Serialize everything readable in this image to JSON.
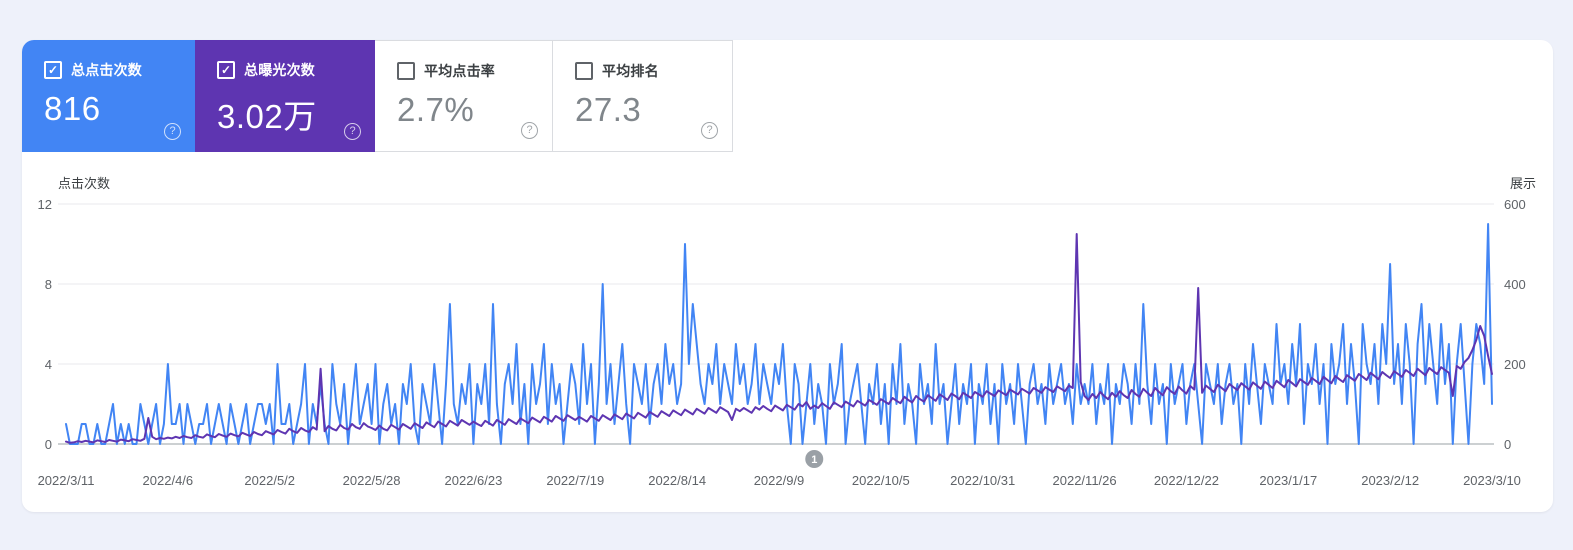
{
  "page": {
    "background": "#eef1fa",
    "panel_background": "#ffffff"
  },
  "help_glyph": "?",
  "check_glyph": "✓",
  "metric_cards": [
    {
      "id": "total-clicks",
      "label": "总点击次数",
      "value": "816",
      "checked": true,
      "background": "#4285f4",
      "label_color": "#ffffff",
      "value_color": "#ffffff",
      "checkbox_color": "#ffffff"
    },
    {
      "id": "total-impressions",
      "label": "总曝光次数",
      "value": "3.02万",
      "checked": true,
      "background": "#5e35b1",
      "label_color": "#ffffff",
      "value_color": "#ffffff",
      "checkbox_color": "#ffffff"
    },
    {
      "id": "average-ctr",
      "label": "平均点击率",
      "value": "2.7%",
      "checked": false,
      "background": "#ffffff",
      "label_color": "#3c4043",
      "value_color": "#80868b",
      "checkbox_color": "#5f6368"
    },
    {
      "id": "average-position",
      "label": "平均排名",
      "value": "27.3",
      "checked": false,
      "background": "#ffffff",
      "label_color": "#3c4043",
      "value_color": "#80868b",
      "checkbox_color": "#5f6368"
    }
  ],
  "chart_data": {
    "type": "line",
    "title": "",
    "grid": true,
    "legend_position": "none",
    "left_axis": {
      "title": "点击次数",
      "ticks": [
        0,
        4,
        8,
        12
      ],
      "range": [
        0,
        12
      ]
    },
    "right_axis": {
      "title": "展示",
      "ticks": [
        0,
        200,
        400,
        600
      ],
      "range": [
        0,
        600
      ]
    },
    "x_tick_labels": [
      "2022/3/11",
      "2022/4/6",
      "2022/5/2",
      "2022/5/28",
      "2022/6/23",
      "2022/7/19",
      "2022/8/14",
      "2022/9/9",
      "2022/10/5",
      "2022/10/31",
      "2022/11/26",
      "2022/12/22",
      "2023/1/17",
      "2023/2/12",
      "2023/3/10"
    ],
    "x_tick_interval_days": 26,
    "days_total": 365,
    "marker": {
      "label": "1",
      "day_index": 191,
      "color": "#9aa0a6",
      "text_color": "#ffffff"
    },
    "grid_color": "#e8eaed",
    "zero_line_color": "#9aa0a6",
    "series": [
      {
        "name": "点击次数",
        "axis": "left",
        "color": "#4285f4",
        "values": [
          1,
          0,
          0,
          0,
          1,
          1,
          0,
          0,
          1,
          0,
          0,
          1,
          2,
          0,
          1,
          0,
          1,
          0,
          0,
          2,
          1,
          0,
          1,
          2,
          0,
          1,
          4,
          1,
          1,
          2,
          0,
          2,
          1,
          0,
          1,
          1,
          2,
          0,
          1,
          2,
          1,
          0,
          2,
          1,
          0,
          1,
          2,
          0,
          1,
          2,
          2,
          1,
          2,
          0,
          4,
          1,
          1,
          2,
          0,
          1,
          2,
          4,
          0,
          2,
          1,
          3,
          1,
          0,
          4,
          2,
          1,
          3,
          0,
          2,
          4,
          1,
          2,
          3,
          1,
          4,
          0,
          2,
          3,
          1,
          2,
          0,
          3,
          2,
          4,
          1,
          0,
          3,
          2,
          1,
          4,
          2,
          0,
          3,
          7,
          2,
          1,
          3,
          2,
          4,
          0,
          3,
          2,
          4,
          1,
          7,
          2,
          0,
          3,
          4,
          2,
          5,
          1,
          3,
          0,
          4,
          2,
          3,
          5,
          1,
          4,
          2,
          3,
          0,
          2,
          4,
          3,
          1,
          5,
          2,
          4,
          0,
          3,
          8,
          2,
          4,
          1,
          3,
          5,
          2,
          0,
          4,
          3,
          2,
          4,
          1,
          3,
          4,
          2,
          5,
          3,
          4,
          2,
          3,
          10,
          4,
          7,
          5,
          3,
          2,
          4,
          3,
          5,
          2,
          4,
          3,
          2,
          5,
          3,
          4,
          2,
          3,
          5,
          2,
          4,
          3,
          2,
          4,
          3,
          5,
          2,
          0,
          4,
          3,
          0,
          2,
          4,
          1,
          3,
          2,
          0,
          4,
          2,
          3,
          5,
          0,
          2,
          3,
          4,
          2,
          0,
          3,
          2,
          4,
          1,
          3,
          0,
          4,
          2,
          5,
          1,
          3,
          2,
          0,
          4,
          2,
          3,
          1,
          5,
          2,
          3,
          0,
          2,
          4,
          1,
          3,
          2,
          4,
          0,
          3,
          2,
          4,
          1,
          3,
          0,
          4,
          2,
          3,
          1,
          4,
          2,
          0,
          3,
          4,
          2,
          3,
          1,
          4,
          2,
          3,
          4,
          2,
          3,
          1,
          4,
          2,
          3,
          2,
          4,
          1,
          3,
          2,
          4,
          0,
          3,
          2,
          4,
          3,
          1,
          4,
          2,
          7,
          3,
          1,
          4,
          2,
          3,
          0,
          4,
          2,
          3,
          4,
          1,
          3,
          4,
          2,
          0,
          4,
          3,
          2,
          4,
          1,
          3,
          4,
          2,
          3,
          0,
          4,
          2,
          5,
          3,
          1,
          4,
          3,
          2,
          6,
          3,
          4,
          2,
          5,
          3,
          6,
          1,
          4,
          3,
          5,
          2,
          4,
          0,
          5,
          3,
          4,
          6,
          2,
          5,
          3,
          0,
          6,
          4,
          3,
          5,
          2,
          6,
          4,
          9,
          3,
          5,
          2,
          6,
          4,
          0,
          5,
          7,
          3,
          6,
          4,
          2,
          6,
          3,
          5,
          0,
          4,
          6,
          3,
          0,
          4,
          6,
          5,
          3,
          11,
          2
        ]
      },
      {
        "name": "展示",
        "axis": "right",
        "color": "#5e35b1",
        "values": [
          6,
          3,
          4,
          7,
          5,
          8,
          6,
          4,
          9,
          7,
          5,
          10,
          8,
          6,
          11,
          9,
          7,
          12,
          10,
          8,
          13,
          65,
          18,
          12,
          15,
          13,
          16,
          14,
          18,
          15,
          20,
          17,
          15,
          22,
          18,
          16,
          24,
          20,
          17,
          25,
          21,
          18,
          26,
          22,
          19,
          28,
          24,
          20,
          30,
          25,
          22,
          32,
          28,
          24,
          35,
          30,
          26,
          38,
          32,
          28,
          40,
          34,
          30,
          42,
          36,
          188,
          32,
          45,
          38,
          34,
          48,
          40,
          36,
          50,
          42,
          38,
          52,
          44,
          40,
          35,
          46,
          38,
          34,
          48,
          42,
          36,
          50,
          44,
          38,
          52,
          46,
          40,
          54,
          48,
          42,
          56,
          50,
          44,
          58,
          52,
          46,
          60,
          54,
          48,
          56,
          50,
          45,
          58,
          52,
          46,
          60,
          54,
          48,
          62,
          56,
          50,
          64,
          58,
          52,
          66,
          60,
          54,
          68,
          62,
          56,
          70,
          64,
          58,
          72,
          66,
          60,
          68,
          62,
          56,
          70,
          64,
          58,
          72,
          66,
          60,
          74,
          68,
          62,
          76,
          70,
          64,
          78,
          72,
          66,
          80,
          74,
          68,
          82,
          76,
          70,
          84,
          78,
          72,
          86,
          80,
          74,
          88,
          82,
          76,
          90,
          84,
          78,
          92,
          86,
          80,
          60,
          88,
          82,
          90,
          84,
          78,
          92,
          86,
          95,
          88,
          82,
          96,
          90,
          84,
          98,
          92,
          86,
          100,
          94,
          105,
          88,
          96,
          90,
          102,
          95,
          88,
          104,
          98,
          92,
          106,
          100,
          94,
          108,
          102,
          96,
          110,
          104,
          98,
          112,
          106,
          100,
          115,
          108,
          102,
          118,
          110,
          104,
          120,
          112,
          106,
          122,
          115,
          108,
          124,
          118,
          110,
          126,
          120,
          112,
          128,
          122,
          115,
          130,
          124,
          118,
          132,
          126,
          120,
          134,
          128,
          122,
          136,
          130,
          124,
          138,
          132,
          126,
          140,
          134,
          128,
          142,
          136,
          130,
          144,
          138,
          132,
          146,
          140,
          525,
          155,
          120,
          110,
          125,
          115,
          130,
          120,
          112,
          128,
          118,
          132,
          122,
          115,
          135,
          125,
          118,
          138,
          128,
          120,
          140,
          130,
          122,
          142,
          132,
          125,
          144,
          134,
          126,
          145,
          136,
          390,
          128,
          146,
          138,
          130,
          148,
          140,
          132,
          150,
          142,
          135,
          152,
          144,
          136,
          154,
          146,
          138,
          156,
          148,
          140,
          158,
          150,
          142,
          160,
          152,
          144,
          162,
          155,
          148,
          165,
          158,
          150,
          168,
          160,
          152,
          170,
          162,
          155,
          172,
          165,
          158,
          175,
          168,
          160,
          178,
          170,
          162,
          180,
          172,
          165,
          182,
          175,
          168,
          185,
          178,
          170,
          188,
          180,
          172,
          190,
          182,
          175,
          192,
          185,
          178,
          120,
          195,
          188,
          205,
          215,
          235,
          260,
          295,
          270,
          220,
          175
        ]
      }
    ]
  }
}
